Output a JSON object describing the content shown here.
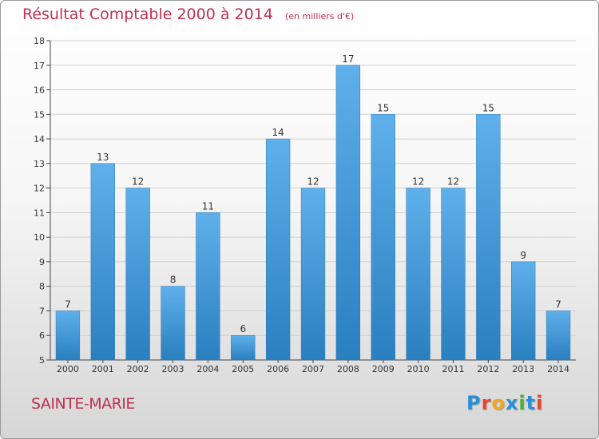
{
  "header": {
    "title": "Résultat Comptable 2000 à 2014",
    "unit": "(en milliers d'€)"
  },
  "commune": "SAINTE-MARIE",
  "logo": {
    "letters": [
      "P",
      "r",
      "o",
      "x",
      "i",
      "t",
      "i"
    ],
    "colors": [
      "#2a8fd6",
      "#e8432e",
      "#f2a516",
      "#2a8fd6",
      "#4caf3a",
      "#2a8fd6",
      "#e8432e"
    ]
  },
  "colors": {
    "bar_top": "#5fb0ea",
    "bar_bottom": "#2a7fbf",
    "title": "#c0304f",
    "grid": "#cfcfcf"
  },
  "chart_data": {
    "type": "bar",
    "title": "Résultat Comptable 2000 à 2014",
    "xlabel": "",
    "ylabel": "en milliers d'€",
    "categories": [
      "2000",
      "2001",
      "2002",
      "2003",
      "2004",
      "2005",
      "2006",
      "2007",
      "2008",
      "2009",
      "2010",
      "2011",
      "2012",
      "2013",
      "2014"
    ],
    "values": [
      7,
      13,
      12,
      8,
      11,
      6,
      14,
      12,
      17,
      15,
      12,
      12,
      15,
      9,
      7
    ],
    "ylim": [
      5,
      18
    ],
    "yticks": [
      5,
      6,
      7,
      8,
      9,
      10,
      11,
      12,
      13,
      14,
      15,
      16,
      17,
      18
    ],
    "grid": true
  }
}
